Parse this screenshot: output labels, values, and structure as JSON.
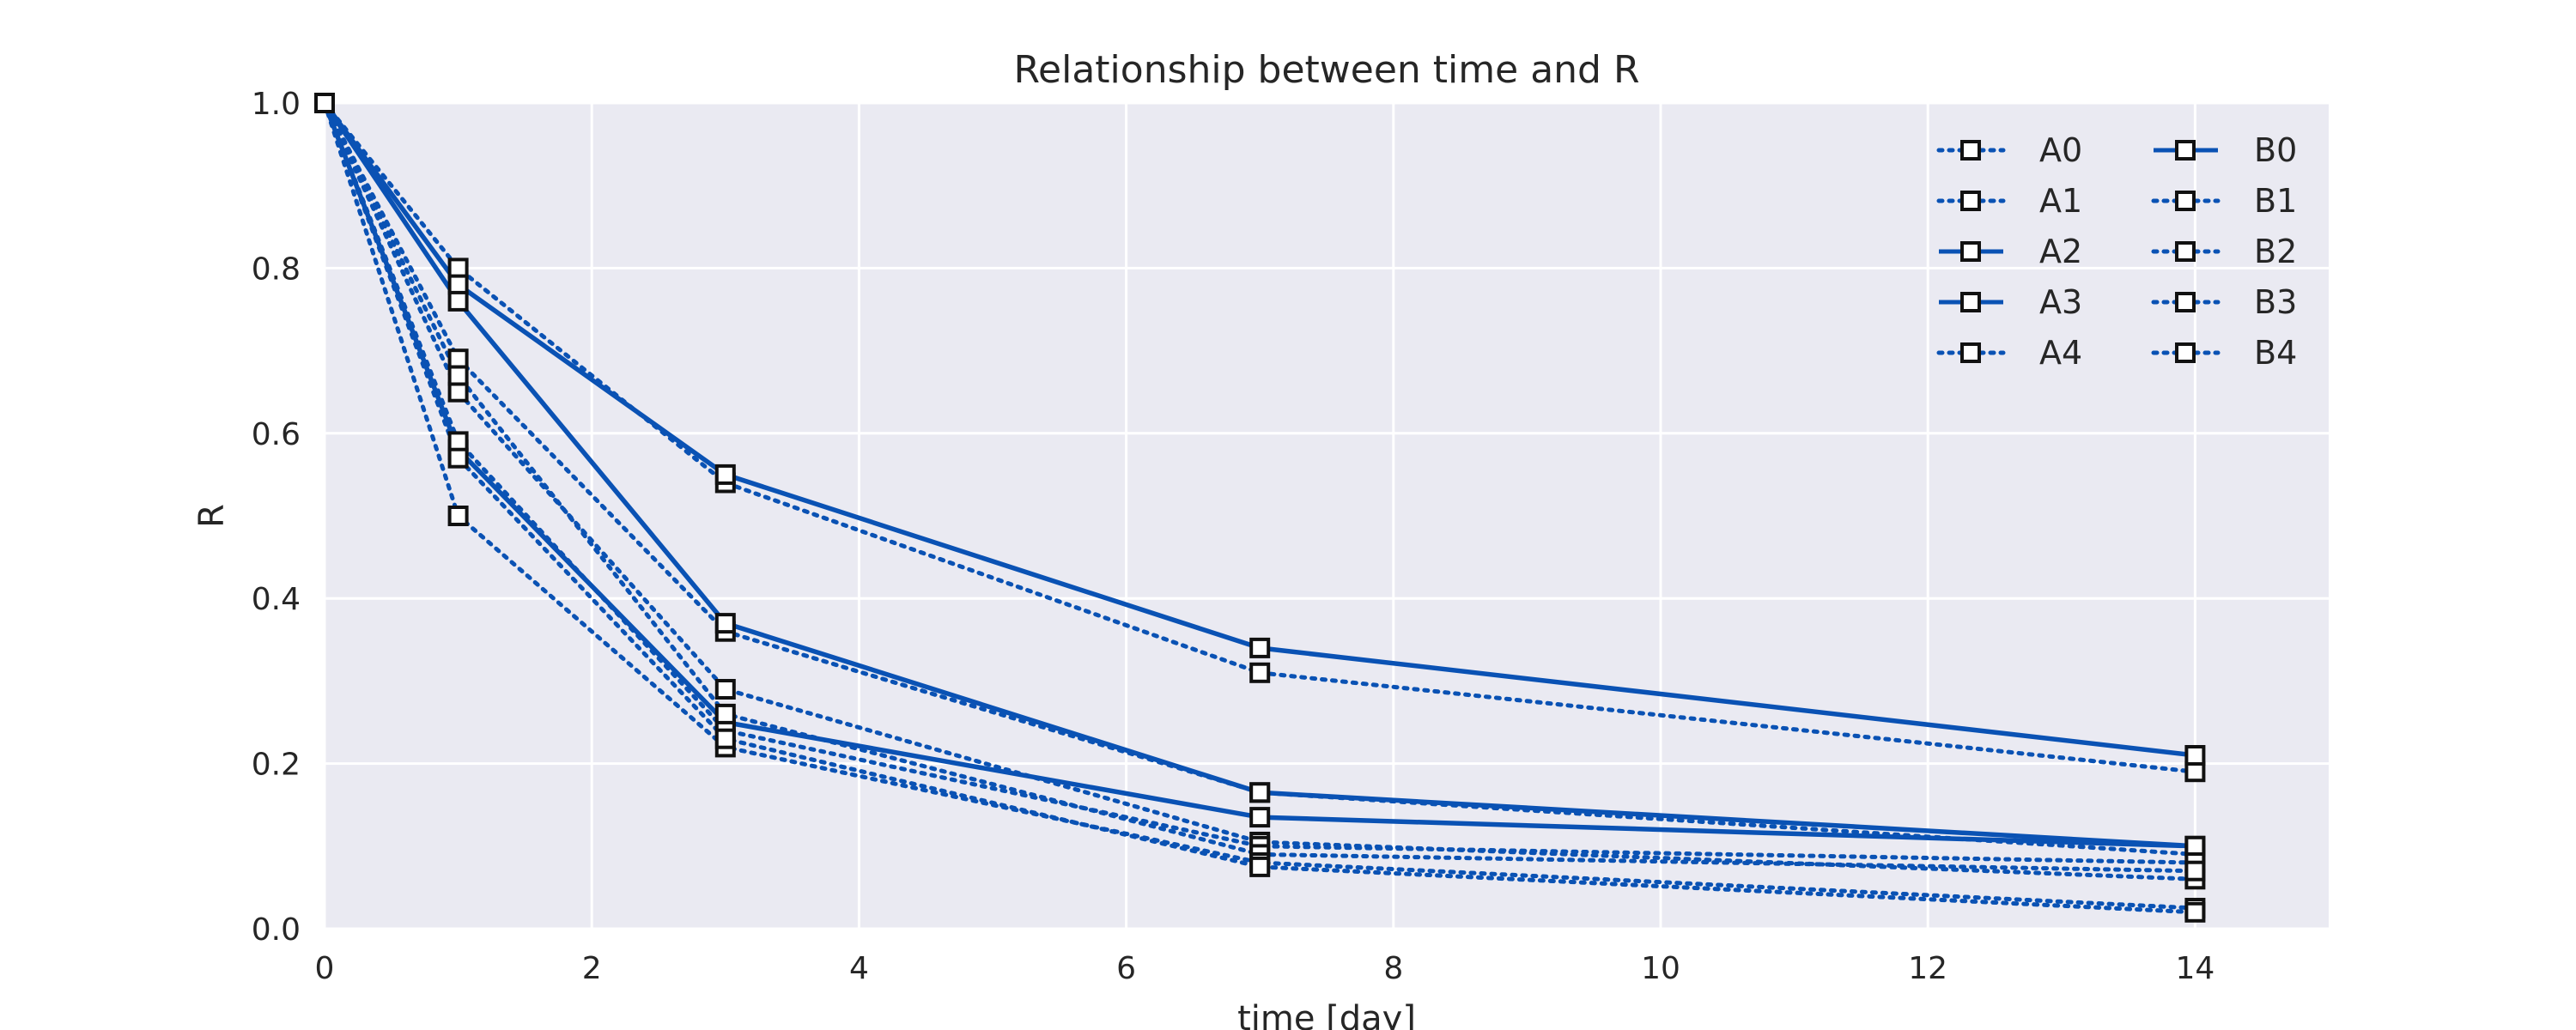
{
  "chart_data": {
    "type": "line",
    "title": "Relationship between time and R",
    "xlabel": "time [day]",
    "ylabel": "R",
    "xlim": [
      0,
      15
    ],
    "ylim": [
      0,
      1.0
    ],
    "xticks": [
      "0",
      "2",
      "4",
      "6",
      "8",
      "10",
      "12",
      "14"
    ],
    "yticks": [
      "0.0",
      "0.2",
      "0.4",
      "0.6",
      "0.8",
      "1.0"
    ],
    "grid": true,
    "legend_position": "top-right",
    "legend_columns": 2,
    "line_color": "#0a52b4",
    "marker": "square",
    "x": [
      0,
      1,
      3,
      7,
      14
    ],
    "series": [
      {
        "name": "A0",
        "style": "dotted",
        "values": [
          1.0,
          0.8,
          0.54,
          0.31,
          0.19
        ]
      },
      {
        "name": "A1",
        "style": "dotted",
        "values": [
          1.0,
          0.69,
          0.36,
          0.165,
          0.09
        ]
      },
      {
        "name": "A2",
        "style": "solid",
        "values": [
          1.0,
          0.78,
          0.55,
          0.34,
          0.21
        ]
      },
      {
        "name": "A3",
        "style": "solid",
        "values": [
          1.0,
          0.76,
          0.37,
          0.165,
          0.1
        ]
      },
      {
        "name": "A4",
        "style": "dotted",
        "values": [
          1.0,
          0.65,
          0.29,
          0.105,
          0.06
        ]
      },
      {
        "name": "B0",
        "style": "solid",
        "values": [
          1.0,
          0.58,
          0.25,
          0.135,
          0.1
        ]
      },
      {
        "name": "B1",
        "style": "dotted",
        "values": [
          1.0,
          0.59,
          0.24,
          0.1,
          0.08
        ]
      },
      {
        "name": "B2",
        "style": "dotted",
        "values": [
          1.0,
          0.67,
          0.26,
          0.09,
          0.07
        ]
      },
      {
        "name": "B3",
        "style": "dotted",
        "values": [
          1.0,
          0.5,
          0.22,
          0.08,
          0.025
        ]
      },
      {
        "name": "B4",
        "style": "dotted",
        "values": [
          1.0,
          0.57,
          0.23,
          0.075,
          0.02
        ]
      }
    ]
  }
}
